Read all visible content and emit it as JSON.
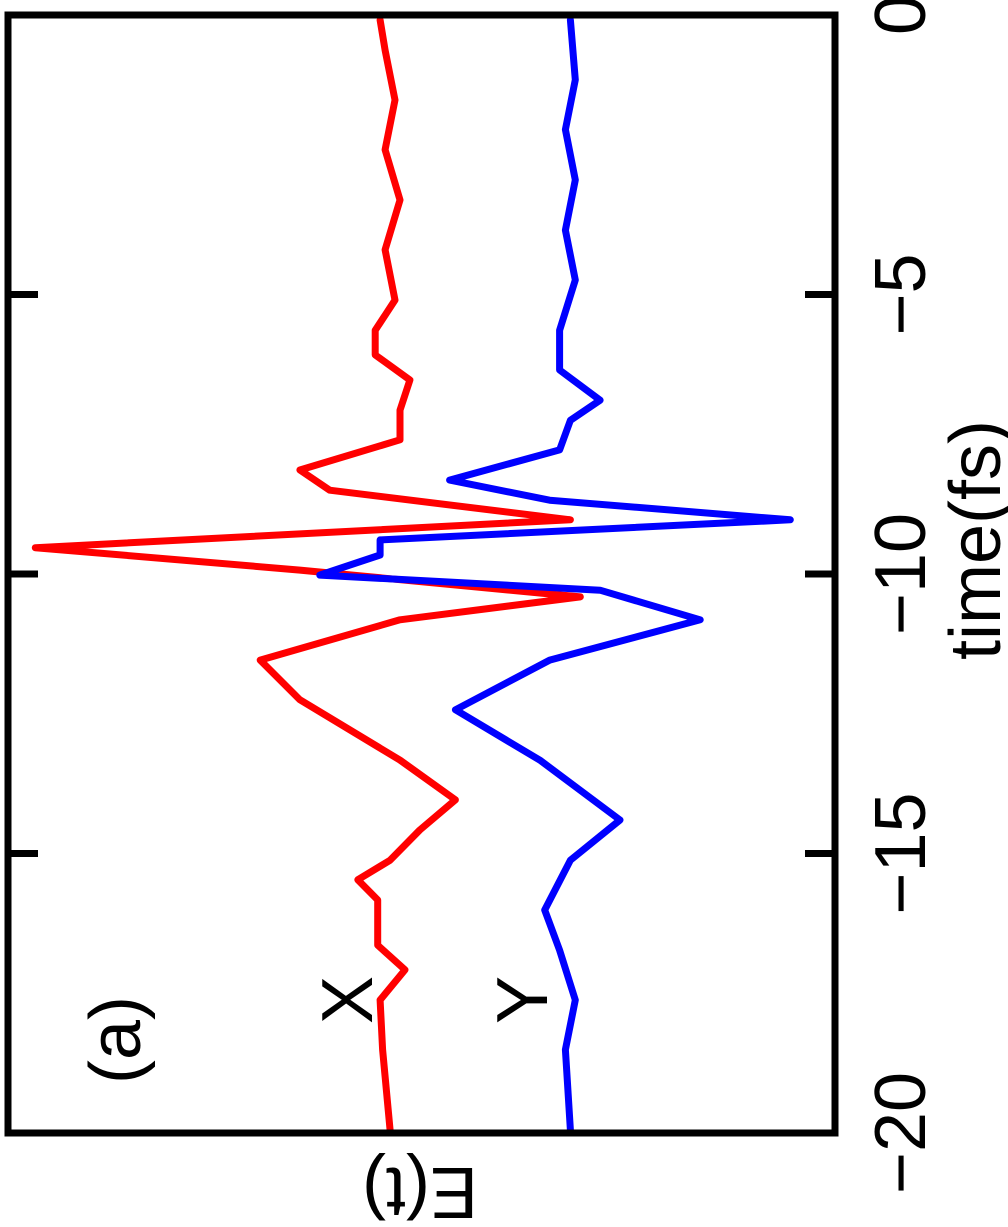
{
  "chart_data": {
    "type": "line",
    "xlabel": "time(fs)",
    "ylabel": "E(t)",
    "annotations": [
      "(a)",
      "X",
      "Y"
    ],
    "xlim": [
      -20,
      0
    ],
    "xticks": [
      {
        "value": -20,
        "label": "−20"
      },
      {
        "value": -15,
        "label": "−15"
      },
      {
        "value": -10,
        "label": "−10"
      },
      {
        "value": -5,
        "label": "−5"
      },
      0
    ],
    "ylim": [
      0,
      1
    ],
    "series": [
      {
        "name": "X",
        "color": "#ff0000",
        "x": [
          -19.95,
          -18.51,
          -17.62,
          -17.08,
          -16.64,
          -15.83,
          -15.47,
          -15.12,
          -14.58,
          -14.04,
          -13.33,
          -12.25,
          -11.54,
          -10.82,
          -10.41,
          -9.93,
          -9.53,
          -9.03,
          -8.5,
          -8.14,
          -7.6,
          -7.07,
          -6.53,
          -6.08,
          -5.64,
          -5.1,
          -4.2,
          -3.31,
          -2.41,
          -1.52,
          -0.63,
          -0.09
        ],
        "values": [
          0.538,
          0.547,
          0.55,
          0.52,
          0.553,
          0.553,
          0.577,
          0.538,
          0.502,
          0.459,
          0.526,
          0.647,
          0.695,
          0.526,
          0.308,
          0.647,
          0.967,
          0.32,
          0.611,
          0.647,
          0.526,
          0.526,
          0.514,
          0.556,
          0.556,
          0.532,
          0.544,
          0.526,
          0.544,
          0.532,
          0.544,
          0.55
        ]
      },
      {
        "name": "Y",
        "color": "#0000ff",
        "x": [
          -19.95,
          -18.51,
          -17.62,
          -16.73,
          -16.01,
          -15.12,
          -14.4,
          -13.33,
          -12.43,
          -11.54,
          -10.82,
          -10.29,
          -10.02,
          -9.66,
          -9.39,
          -9.03,
          -8.68,
          -8.32,
          -7.78,
          -7.25,
          -6.89,
          -6.35,
          -5.64,
          -4.74,
          -3.85,
          -2.95,
          -2.05,
          -1.16,
          -0.09
        ],
        "values": [
          0.32,
          0.326,
          0.314,
          0.333,
          0.351,
          0.32,
          0.26,
          0.357,
          0.459,
          0.345,
          0.163,
          0.284,
          0.623,
          0.55,
          0.55,
          0.054,
          0.345,
          0.466,
          0.333,
          0.32,
          0.284,
          0.333,
          0.333,
          0.314,
          0.326,
          0.314,
          0.326,
          0.314,
          0.32
        ]
      }
    ]
  }
}
